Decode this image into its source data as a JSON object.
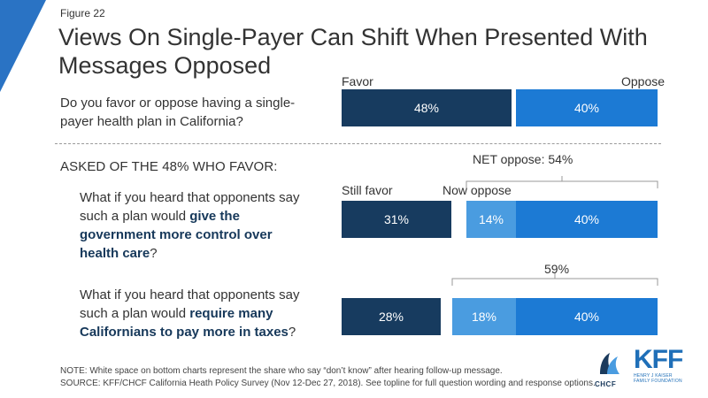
{
  "figure_label": "Figure 22",
  "title": "Views On Single-Payer Can Shift When Presented With Messages Opposed",
  "divider_label": "ASKED OF THE 48% WHO FAVOR:",
  "colors": {
    "dark_navy": "#173b5f",
    "light_blue": "#4a9ce0",
    "medium_blue": "#1c7ad4",
    "accent_corner": "#2a73c4"
  },
  "questions": {
    "q1": {
      "text": "Do you favor or oppose having a single-payer health plan in California?",
      "label_favor": "Favor",
      "label_oppose": "Oppose"
    },
    "q2": {
      "prefix": "What if you heard that opponents say such a plan would ",
      "bold": "give the government more control over health care",
      "suffix": "?",
      "label_still": "Still favor",
      "label_now": "Now oppose",
      "net_label": "NET oppose: 54%"
    },
    "q3": {
      "prefix": "What if you heard that opponents say such a plan would ",
      "bold": "require many Californians to pay more in taxes",
      "suffix": "?",
      "net_label": "59%"
    }
  },
  "chart_data": {
    "type": "bar",
    "orientation": "horizontal-stacked",
    "unit": "%",
    "series_labels": [
      "Favor",
      "Oppose",
      "Still favor",
      "Now oppose"
    ],
    "rows": [
      {
        "question": "Do you favor or oppose having a single-payer health plan in California?",
        "segments": [
          {
            "label": "Favor",
            "value": 48
          },
          {
            "label": "Oppose",
            "value": 40
          }
        ]
      },
      {
        "question": "What if you heard that opponents say such a plan would give the government more control over health care?",
        "segments": [
          {
            "label": "Still favor",
            "value": 31
          },
          {
            "label": "Now oppose",
            "value": 14
          },
          {
            "label": "Oppose",
            "value": 40
          }
        ],
        "net_oppose": 54
      },
      {
        "question": "What if you heard that opponents say such a plan would require many Californians to pay more in taxes?",
        "segments": [
          {
            "label": "Still favor",
            "value": 28
          },
          {
            "label": "Now oppose",
            "value": 18
          },
          {
            "label": "Oppose",
            "value": 40
          }
        ],
        "net_oppose": 59
      }
    ],
    "value_labels": [
      "48%",
      "40%",
      "31%",
      "14%",
      "40%",
      "28%",
      "18%",
      "40%"
    ]
  },
  "note": "NOTE: White space on bottom charts represent the share who say “don’t know” after hearing follow-up message.",
  "source": "SOURCE: KFF/CHCF California Heath Policy Survey (Nov 12-Dec 27, 2018). See topline for full question wording and response options.",
  "logos": {
    "chcf": "CHCF",
    "kff": "KFF",
    "kff_sub_1": "HENRY J KAISER",
    "kff_sub_2": "FAMILY FOUNDATION"
  }
}
